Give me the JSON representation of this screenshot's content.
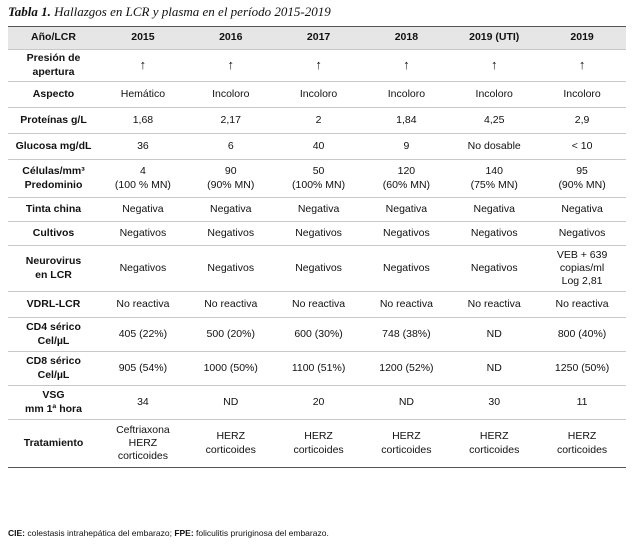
{
  "caption": {
    "label": "Tabla 1.",
    "text": "Hallazgos en LCR y plasma en el período 2015-2019"
  },
  "header": [
    "Año/LCR",
    "2015",
    "2016",
    "2017",
    "2018",
    "2019 (UTI)",
    "2019"
  ],
  "rows": [
    {
      "label": [
        "Presión de",
        "apertura"
      ],
      "cells": [
        [
          "↑"
        ],
        [
          "↑"
        ],
        [
          "↑"
        ],
        [
          "↑"
        ],
        [
          "↑"
        ],
        [
          "↑"
        ]
      ]
    },
    {
      "label": [
        "Aspecto"
      ],
      "cells": [
        [
          "Hemático"
        ],
        [
          "Incoloro"
        ],
        [
          "Incoloro"
        ],
        [
          "Incoloro"
        ],
        [
          "Incoloro"
        ],
        [
          "Incoloro"
        ]
      ]
    },
    {
      "label": [
        "Proteínas g/L"
      ],
      "cells": [
        [
          "1,68"
        ],
        [
          "2,17"
        ],
        [
          "2"
        ],
        [
          "1,84"
        ],
        [
          "4,25"
        ],
        [
          "2,9"
        ]
      ]
    },
    {
      "label": [
        "Glucosa mg/dL"
      ],
      "cells": [
        [
          "36"
        ],
        [
          "6"
        ],
        [
          "40"
        ],
        [
          "9"
        ],
        [
          "No dosable"
        ],
        [
          "< 10"
        ]
      ]
    },
    {
      "label": [
        "Células/mm³",
        "Predominio"
      ],
      "cells": [
        [
          "4",
          "(100 % MN)"
        ],
        [
          "90",
          "(90% MN)"
        ],
        [
          "50",
          "(100% MN)"
        ],
        [
          "120",
          "(60% MN)"
        ],
        [
          "140",
          "(75% MN)"
        ],
        [
          "95",
          "(90% MN)"
        ]
      ]
    },
    {
      "label": [
        "Tinta china"
      ],
      "cells": [
        [
          "Negativa"
        ],
        [
          "Negativa"
        ],
        [
          "Negativa"
        ],
        [
          "Negativa"
        ],
        [
          "Negativa"
        ],
        [
          "Negativa"
        ]
      ]
    },
    {
      "label": [
        "Cultivos"
      ],
      "cells": [
        [
          "Negativos"
        ],
        [
          "Negativos"
        ],
        [
          "Negativos"
        ],
        [
          "Negativos"
        ],
        [
          "Negativos"
        ],
        [
          "Negativos"
        ]
      ]
    },
    {
      "label": [
        "Neurovirus",
        "en LCR"
      ],
      "cells": [
        [
          "Negativos"
        ],
        [
          "Negativos"
        ],
        [
          "Negativos"
        ],
        [
          "Negativos"
        ],
        [
          "Negativos"
        ],
        [
          "VEB + 639",
          "copias/ml",
          "Log 2,81"
        ]
      ]
    },
    {
      "label": [
        "VDRL-LCR"
      ],
      "cells": [
        [
          "No reactiva"
        ],
        [
          "No reactiva"
        ],
        [
          "No reactiva"
        ],
        [
          "No reactiva"
        ],
        [
          "No reactiva"
        ],
        [
          "No reactiva"
        ]
      ]
    },
    {
      "label": [
        "CD4 sérico",
        "Cel/µL"
      ],
      "cells": [
        [
          "405 (22%)"
        ],
        [
          "500 (20%)"
        ],
        [
          "600 (30%)"
        ],
        [
          "748 (38%)"
        ],
        [
          "ND"
        ],
        [
          "800 (40%)"
        ]
      ]
    },
    {
      "label": [
        "CD8 sérico",
        "Cel/µL"
      ],
      "cells": [
        [
          "905 (54%)"
        ],
        [
          "1000 (50%)"
        ],
        [
          "1100 (51%)"
        ],
        [
          "1200 (52%)"
        ],
        [
          "ND"
        ],
        [
          "1250 (50%)"
        ]
      ]
    },
    {
      "label": [
        "VSG",
        "mm 1ª hora"
      ],
      "cells": [
        [
          "34"
        ],
        [
          "ND"
        ],
        [
          "20"
        ],
        [
          "ND"
        ],
        [
          "30"
        ],
        [
          "11"
        ]
      ]
    },
    {
      "label": [
        "Tratamiento"
      ],
      "cells": [
        [
          "Ceftriaxona",
          "HERZ",
          "corticoides"
        ],
        [
          "HERZ",
          "corticoides"
        ],
        [
          "HERZ",
          "corticoides"
        ],
        [
          "HERZ",
          "corticoides"
        ],
        [
          "HERZ",
          "corticoides"
        ],
        [
          "HERZ",
          "corticoides"
        ]
      ]
    }
  ],
  "footnote": {
    "abbr1": "CIE:",
    "text1": " colestasis intrahepática del embarazo; ",
    "abbr2": "FPE:",
    "text2": " foliculitis pruriginosa del embarazo."
  }
}
